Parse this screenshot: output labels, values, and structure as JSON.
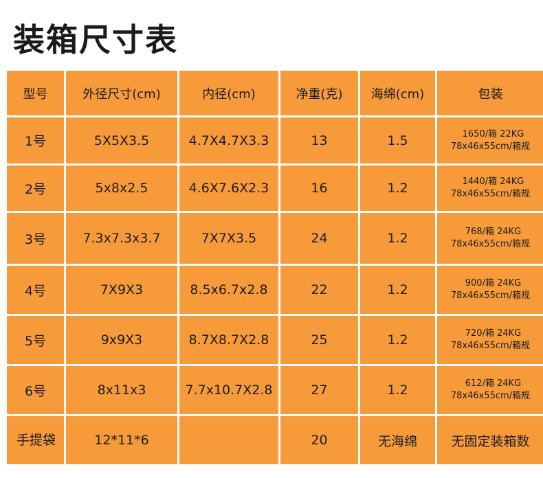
{
  "title": "装箱尺寸表",
  "table": {
    "headers": [
      "型号",
      "外径尺寸(cm)",
      "内径(cm)",
      "净重(克)",
      "海绵(cm)",
      "包装"
    ],
    "rows": [
      {
        "model": "1号",
        "outer": "5X5X3.5",
        "inner": "4.7X4.7X3.3",
        "weight": "13",
        "sponge": "1.5",
        "pack_line1": "1650/箱  22KG",
        "pack_line2": "78x46x55cm/箱规"
      },
      {
        "model": "2号",
        "outer": "5x8x2.5",
        "inner": "4.6X7.6X2.3",
        "weight": "16",
        "sponge": "1.2",
        "pack_line1": "1440/箱  24KG",
        "pack_line2": "78x46x55cm/箱规"
      },
      {
        "model": "3号",
        "outer": "7.3x7.3x3.7",
        "inner": "7X7X3.5",
        "weight": "24",
        "sponge": "1.2",
        "pack_line1": "768/箱  24KG",
        "pack_line2": "78x46x55cm/箱规"
      },
      {
        "model": "4号",
        "outer": "7X9X3",
        "inner": "8.5x6.7x2.8",
        "weight": "22",
        "sponge": "1.2",
        "pack_line1": "900/箱  24KG",
        "pack_line2": "78x46x55cm/箱规"
      },
      {
        "model": "5号",
        "outer": "9x9X3",
        "inner": "8.7X8.7X2.8",
        "weight": "25",
        "sponge": "1.2",
        "pack_line1": "720/箱  24KG",
        "pack_line2": "78x46x55cm/箱规"
      },
      {
        "model": "6号",
        "outer": "8x11x3",
        "inner": "7.7x10.7X2.8",
        "weight": "27",
        "sponge": "1.2",
        "pack_line1": "612/箱  24KG",
        "pack_line2": "78x46x55cm/箱规"
      },
      {
        "model": "手提袋",
        "outer": "12*11*6",
        "inner": "",
        "weight": "20",
        "sponge": "无海绵",
        "pack": "无固定装箱数"
      }
    ]
  },
  "colors": {
    "cell_bg": "#f79a3a",
    "text": "#1e1e1e",
    "title": "#1a1a1a"
  }
}
